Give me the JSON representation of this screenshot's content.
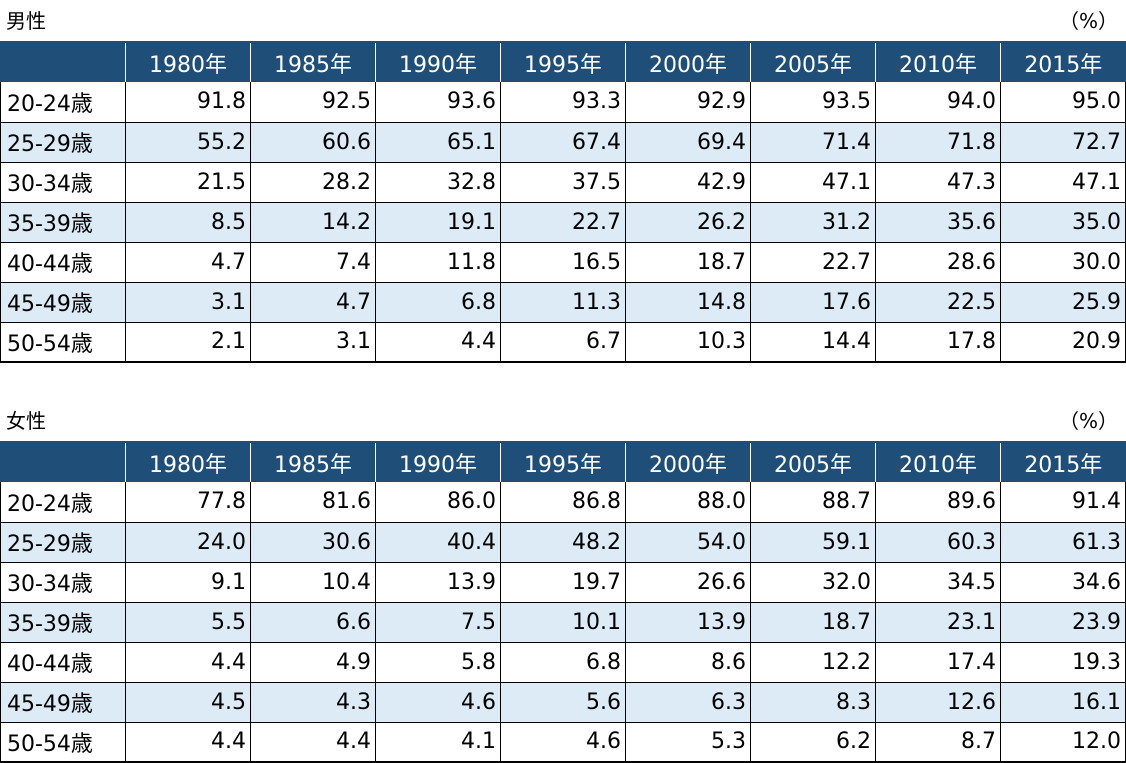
{
  "male": {
    "title": "男性",
    "unit": "（%）",
    "columns": [
      "1980年",
      "1985年",
      "1990年",
      "1995年",
      "2000年",
      "2005年",
      "2010年",
      "2015年"
    ],
    "rows": [
      {
        "label": "20-24歳",
        "values": [
          "91.8",
          "92.5",
          "93.6",
          "93.3",
          "92.9",
          "93.5",
          "94.0",
          "95.0"
        ]
      },
      {
        "label": "25-29歳",
        "values": [
          "55.2",
          "60.6",
          "65.1",
          "67.4",
          "69.4",
          "71.4",
          "71.8",
          "72.7"
        ]
      },
      {
        "label": "30-34歳",
        "values": [
          "21.5",
          "28.2",
          "32.8",
          "37.5",
          "42.9",
          "47.1",
          "47.3",
          "47.1"
        ]
      },
      {
        "label": "35-39歳",
        "values": [
          "8.5",
          "14.2",
          "19.1",
          "22.7",
          "26.2",
          "31.2",
          "35.6",
          "35.0"
        ]
      },
      {
        "label": "40-44歳",
        "values": [
          "4.7",
          "7.4",
          "11.8",
          "16.5",
          "18.7",
          "22.7",
          "28.6",
          "30.0"
        ]
      },
      {
        "label": "45-49歳",
        "values": [
          "3.1",
          "4.7",
          "6.8",
          "11.3",
          "14.8",
          "17.6",
          "22.5",
          "25.9"
        ]
      },
      {
        "label": "50-54歳",
        "values": [
          "2.1",
          "3.1",
          "4.4",
          "6.7",
          "10.3",
          "14.4",
          "17.8",
          "20.9"
        ]
      }
    ]
  },
  "female": {
    "title": "女性",
    "unit": "（%）",
    "columns": [
      "1980年",
      "1985年",
      "1990年",
      "1995年",
      "2000年",
      "2005年",
      "2010年",
      "2015年"
    ],
    "rows": [
      {
        "label": "20-24歳",
        "values": [
          "77.8",
          "81.6",
          "86.0",
          "86.8",
          "88.0",
          "88.7",
          "89.6",
          "91.4"
        ]
      },
      {
        "label": "25-29歳",
        "values": [
          "24.0",
          "30.6",
          "40.4",
          "48.2",
          "54.0",
          "59.1",
          "60.3",
          "61.3"
        ]
      },
      {
        "label": "30-34歳",
        "values": [
          "9.1",
          "10.4",
          "13.9",
          "19.7",
          "26.6",
          "32.0",
          "34.5",
          "34.6"
        ]
      },
      {
        "label": "35-39歳",
        "values": [
          "5.5",
          "6.6",
          "7.5",
          "10.1",
          "13.9",
          "18.7",
          "23.1",
          "23.9"
        ]
      },
      {
        "label": "40-44歳",
        "values": [
          "4.4",
          "4.9",
          "5.8",
          "6.8",
          "8.6",
          "12.2",
          "17.4",
          "19.3"
        ]
      },
      {
        "label": "45-49歳",
        "values": [
          "4.5",
          "4.3",
          "4.6",
          "5.6",
          "6.3",
          "8.3",
          "12.6",
          "16.1"
        ]
      },
      {
        "label": "50-54歳",
        "values": [
          "4.4",
          "4.4",
          "4.1",
          "4.6",
          "5.3",
          "6.2",
          "8.7",
          "12.0"
        ]
      }
    ]
  },
  "colors": {
    "header_bg": "#1f4e79",
    "header_text": "#ffffff",
    "alt_row_bg": "#ddebf7"
  }
}
